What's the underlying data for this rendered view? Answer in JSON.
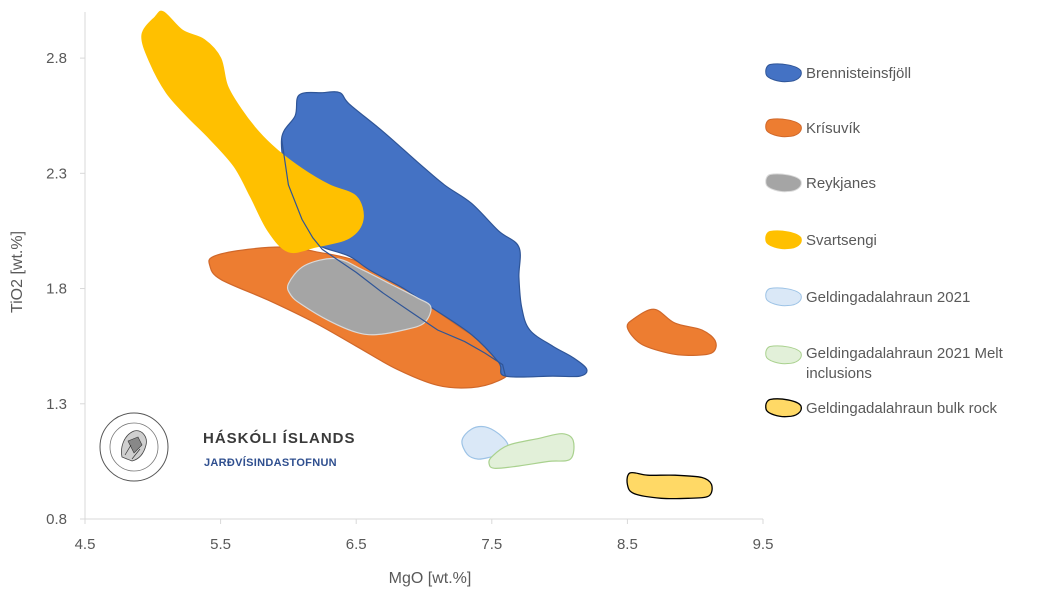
{
  "chart_data": {
    "type": "scatter",
    "xlabel": "MgO  [wt.%]",
    "ylabel": "TiO2 [wt.%]",
    "xlim": [
      4.5,
      9.5
    ],
    "ylim": [
      0.8,
      3.0
    ],
    "x_ticks": [
      "4.5",
      "5.5",
      "6.5",
      "7.5",
      "8.5",
      "9.5"
    ],
    "y_ticks": [
      "0.8",
      "1.3",
      "1.8",
      "2.3",
      "2.8"
    ],
    "grid": false,
    "legend_position": "right",
    "series": [
      {
        "name": "Brennisteinsfjöll",
        "fill": "#4472c4",
        "stroke": "#2f5597",
        "polygon": [
          [
            6.05,
            2.55
          ],
          [
            6.08,
            2.64
          ],
          [
            6.25,
            2.65
          ],
          [
            6.38,
            2.65
          ],
          [
            6.45,
            2.6
          ],
          [
            6.7,
            2.48
          ],
          [
            6.95,
            2.35
          ],
          [
            7.15,
            2.25
          ],
          [
            7.35,
            2.17
          ],
          [
            7.55,
            2.05
          ],
          [
            7.7,
            1.98
          ],
          [
            7.7,
            1.85
          ],
          [
            7.72,
            1.72
          ],
          [
            7.78,
            1.62
          ],
          [
            7.95,
            1.55
          ],
          [
            8.1,
            1.5
          ],
          [
            8.2,
            1.45
          ],
          [
            8.15,
            1.42
          ],
          [
            7.95,
            1.42
          ],
          [
            7.6,
            1.42
          ],
          [
            7.55,
            1.48
          ],
          [
            7.35,
            1.6
          ],
          [
            7.05,
            1.72
          ],
          [
            6.85,
            1.8
          ],
          [
            6.6,
            1.88
          ],
          [
            6.45,
            1.94
          ],
          [
            6.25,
            1.98
          ],
          [
            6.18,
            2.02
          ],
          [
            6.1,
            2.1
          ],
          [
            6.0,
            2.25
          ],
          [
            5.95,
            2.45
          ]
        ]
      },
      {
        "name": "Krísuvík",
        "fill": "#ed7d31",
        "stroke": "#d0682a",
        "polygon": [
          [
            5.45,
            1.94
          ],
          [
            5.7,
            1.97
          ],
          [
            6.0,
            1.98
          ],
          [
            6.2,
            1.96
          ],
          [
            6.5,
            1.92
          ],
          [
            6.8,
            1.82
          ],
          [
            7.1,
            1.7
          ],
          [
            7.35,
            1.6
          ],
          [
            7.6,
            1.53
          ],
          [
            7.65,
            1.45
          ],
          [
            7.55,
            1.4
          ],
          [
            7.35,
            1.37
          ],
          [
            7.1,
            1.38
          ],
          [
            6.8,
            1.45
          ],
          [
            6.5,
            1.55
          ],
          [
            6.2,
            1.65
          ],
          [
            5.85,
            1.75
          ],
          [
            5.5,
            1.84
          ],
          [
            5.42,
            1.9
          ]
        ],
        "polygon2": [
          [
            8.5,
            1.63
          ],
          [
            8.55,
            1.67
          ],
          [
            8.7,
            1.71
          ],
          [
            8.85,
            1.65
          ],
          [
            9.05,
            1.62
          ],
          [
            9.15,
            1.57
          ],
          [
            9.12,
            1.52
          ],
          [
            8.95,
            1.51
          ],
          [
            8.8,
            1.52
          ],
          [
            8.6,
            1.56
          ]
        ]
      },
      {
        "name": "Reykjanes",
        "fill": "#a5a5a5",
        "stroke": "#d9d9d9",
        "polygon": [
          [
            6.0,
            1.82
          ],
          [
            6.12,
            1.9
          ],
          [
            6.35,
            1.93
          ],
          [
            6.55,
            1.88
          ],
          [
            6.75,
            1.82
          ],
          [
            6.95,
            1.76
          ],
          [
            7.05,
            1.72
          ],
          [
            7.0,
            1.65
          ],
          [
            6.85,
            1.62
          ],
          [
            6.65,
            1.6
          ],
          [
            6.5,
            1.61
          ],
          [
            6.3,
            1.66
          ],
          [
            6.1,
            1.73
          ],
          [
            6.02,
            1.77
          ]
        ]
      },
      {
        "name": "Svartsengi",
        "fill": "#ffc000",
        "stroke": "#ffc000",
        "polygon": [
          [
            5.02,
            2.98
          ],
          [
            5.08,
            3.0
          ],
          [
            5.22,
            2.92
          ],
          [
            5.38,
            2.88
          ],
          [
            5.5,
            2.8
          ],
          [
            5.55,
            2.68
          ],
          [
            5.65,
            2.58
          ],
          [
            5.78,
            2.48
          ],
          [
            5.92,
            2.4
          ],
          [
            6.1,
            2.32
          ],
          [
            6.3,
            2.25
          ],
          [
            6.5,
            2.2
          ],
          [
            6.55,
            2.1
          ],
          [
            6.45,
            2.02
          ],
          [
            6.2,
            1.98
          ],
          [
            6.0,
            1.96
          ],
          [
            5.85,
            2.05
          ],
          [
            5.72,
            2.2
          ],
          [
            5.6,
            2.33
          ],
          [
            5.42,
            2.45
          ],
          [
            5.25,
            2.55
          ],
          [
            5.1,
            2.65
          ],
          [
            4.98,
            2.78
          ],
          [
            4.92,
            2.9
          ]
        ]
      },
      {
        "name": "Geldingadalahraun 2021",
        "fill": "#dae8f7",
        "stroke": "#9dc3e6",
        "polygon": [
          [
            7.28,
            1.14
          ],
          [
            7.35,
            1.19
          ],
          [
            7.45,
            1.2
          ],
          [
            7.55,
            1.17
          ],
          [
            7.62,
            1.12
          ],
          [
            7.58,
            1.08
          ],
          [
            7.5,
            1.07
          ],
          [
            7.4,
            1.06
          ],
          [
            7.32,
            1.08
          ]
        ]
      },
      {
        "name": "Geldingadalahraun 2021 Melt inclusions",
        "fill": "#e2f0d9",
        "stroke": "#a9d18e",
        "polygon": [
          [
            7.5,
            1.07
          ],
          [
            7.62,
            1.12
          ],
          [
            7.85,
            1.15
          ],
          [
            8.02,
            1.17
          ],
          [
            8.1,
            1.14
          ],
          [
            8.08,
            1.06
          ],
          [
            7.92,
            1.05
          ],
          [
            7.7,
            1.03
          ],
          [
            7.52,
            1.02
          ],
          [
            7.48,
            1.04
          ]
        ]
      },
      {
        "name": "Geldingadalahraun bulk rock",
        "fill": "#ffd966",
        "stroke": "#000000",
        "polygon": [
          [
            8.52,
            1.0
          ],
          [
            8.65,
            0.99
          ],
          [
            8.85,
            0.99
          ],
          [
            9.05,
            0.98
          ],
          [
            9.12,
            0.95
          ],
          [
            9.1,
            0.9
          ],
          [
            8.95,
            0.89
          ],
          [
            8.75,
            0.89
          ],
          [
            8.55,
            0.91
          ],
          [
            8.5,
            0.95
          ]
        ]
      }
    ],
    "boundary_line": [
      [
        5.95,
        2.45
      ],
      [
        6.0,
        2.25
      ],
      [
        6.1,
        2.1
      ],
      [
        6.18,
        2.02
      ],
      [
        6.25,
        1.97
      ],
      [
        6.5,
        1.87
      ],
      [
        6.7,
        1.78
      ],
      [
        6.9,
        1.7
      ],
      [
        7.1,
        1.62
      ],
      [
        7.3,
        1.57
      ],
      [
        7.45,
        1.52
      ],
      [
        7.58,
        1.47
      ],
      [
        7.6,
        1.42
      ]
    ]
  },
  "logo": {
    "name": "HÁSKÓLI ÍSLANDS",
    "subtitle": "JARÐVÍSINDASTOFNUN",
    "seal_text": "SIGILLUM UNIVERSITATIS ISLANDIAE"
  }
}
